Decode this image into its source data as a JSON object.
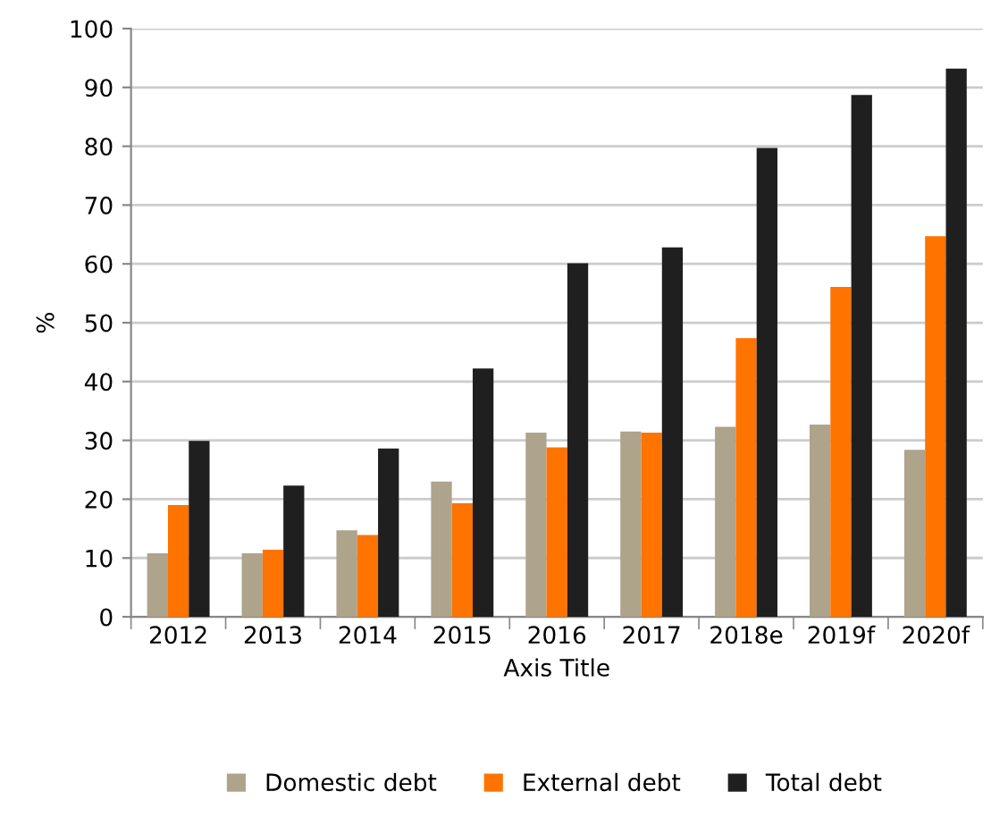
{
  "chart_data": {
    "type": "bar",
    "xlabel": "Axis Title",
    "ylabel": "%",
    "categories": [
      "2012",
      "2013",
      "2014",
      "2015",
      "2016",
      "2017",
      "2018e",
      "2019f",
      "2020f"
    ],
    "series": [
      {
        "name": "Domestic debt",
        "color": "#aea38b",
        "values": [
          10.8,
          10.8,
          14.7,
          23,
          31.3,
          31.5,
          32.3,
          32.7,
          28.4
        ]
      },
      {
        "name": "External debt",
        "color": "#ff7300",
        "values": [
          19,
          11.4,
          13.9,
          19.3,
          28.8,
          31.3,
          47.4,
          56.1,
          64.7
        ]
      },
      {
        "name": "Total debt",
        "color": "#1f1f1f",
        "values": [
          29.9,
          22.3,
          28.6,
          42.2,
          60.1,
          62.8,
          79.7,
          88.7,
          93.2
        ]
      }
    ],
    "ylim": [
      0,
      100
    ],
    "yticks": [
      0,
      10,
      20,
      30,
      40,
      50,
      60,
      70,
      80,
      90,
      100
    ],
    "grid": "y",
    "legend": "bottom"
  }
}
